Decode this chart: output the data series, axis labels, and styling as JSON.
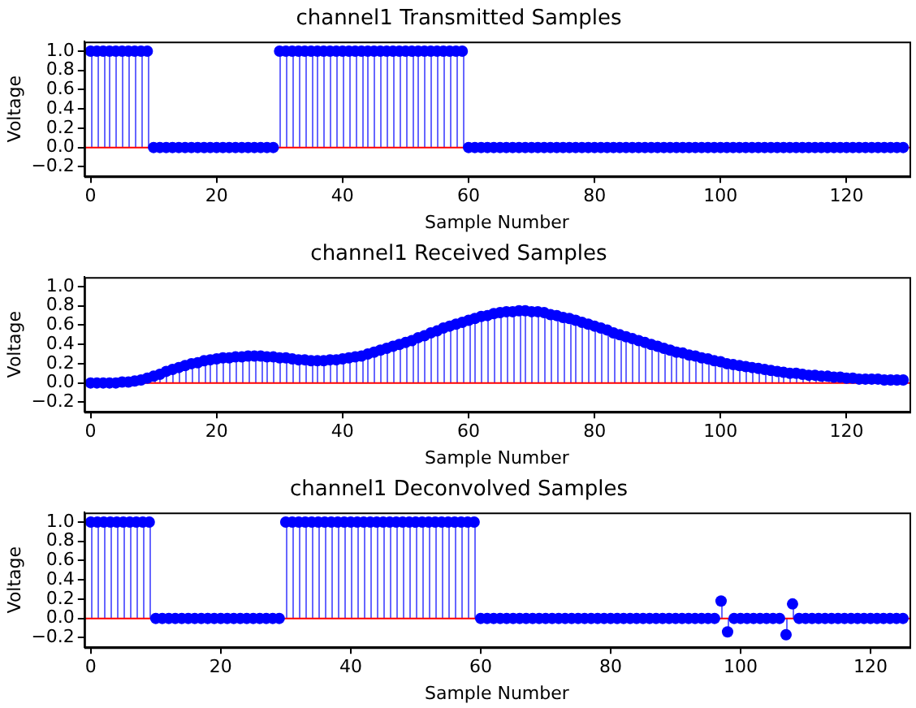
{
  "chart_data": [
    {
      "type": "lollipop",
      "title": "channel1 Transmitted Samples",
      "xlabel": "Sample Number",
      "ylabel": "Voltage",
      "marker": "circle",
      "legend": false,
      "xlim": [
        -1,
        130
      ],
      "xticks": [
        0,
        20,
        40,
        60,
        80,
        100,
        120
      ],
      "ylim": [
        -0.3,
        1.1
      ],
      "yticks": [
        {
          "value": -0.2,
          "label": "−0.2"
        },
        {
          "value": 0,
          "label": "0.0"
        },
        {
          "value": 0.2,
          "label": "0.2"
        },
        {
          "value": 0.4,
          "label": "0.4"
        },
        {
          "value": 0.6,
          "label": "0.6"
        },
        {
          "value": 0.8,
          "label": "0.8"
        },
        {
          "value": 1,
          "label": "1.0"
        }
      ],
      "ref_lines": [
        {
          "axis": "y",
          "value": 0,
          "color": "#ff0000"
        }
      ],
      "series": [
        {
          "color": "#0000ff",
          "x": [
            0,
            1,
            2,
            3,
            4,
            5,
            6,
            7,
            8,
            9,
            10,
            11,
            12,
            13,
            14,
            15,
            16,
            17,
            18,
            19,
            20,
            21,
            22,
            23,
            24,
            25,
            26,
            27,
            28,
            29,
            30,
            31,
            32,
            33,
            34,
            35,
            36,
            37,
            38,
            39,
            40,
            41,
            42,
            43,
            44,
            45,
            46,
            47,
            48,
            49,
            50,
            51,
            52,
            53,
            54,
            55,
            56,
            57,
            58,
            59,
            60,
            61,
            62,
            63,
            64,
            65,
            66,
            67,
            68,
            69,
            70,
            71,
            72,
            73,
            74,
            75,
            76,
            77,
            78,
            79,
            80,
            81,
            82,
            83,
            84,
            85,
            86,
            87,
            88,
            89,
            90,
            91,
            92,
            93,
            94,
            95,
            96,
            97,
            98,
            99,
            100,
            101,
            102,
            103,
            104,
            105,
            106,
            107,
            108,
            109,
            110,
            111,
            112,
            113,
            114,
            115,
            116,
            117,
            118,
            119,
            120,
            121,
            122,
            123,
            124,
            125,
            126,
            127,
            128,
            129
          ],
          "values": [
            1,
            1,
            1,
            1,
            1,
            1,
            1,
            1,
            1,
            1,
            0,
            0,
            0,
            0,
            0,
            0,
            0,
            0,
            0,
            0,
            0,
            0,
            0,
            0,
            0,
            0,
            0,
            0,
            0,
            0,
            1,
            1,
            1,
            1,
            1,
            1,
            1,
            1,
            1,
            1,
            1,
            1,
            1,
            1,
            1,
            1,
            1,
            1,
            1,
            1,
            1,
            1,
            1,
            1,
            1,
            1,
            1,
            1,
            1,
            1,
            0,
            0,
            0,
            0,
            0,
            0,
            0,
            0,
            0,
            0,
            0,
            0,
            0,
            0,
            0,
            0,
            0,
            0,
            0,
            0,
            0,
            0,
            0,
            0,
            0,
            0,
            0,
            0,
            0,
            0,
            0,
            0,
            0,
            0,
            0,
            0,
            0,
            0,
            0,
            0,
            0,
            0,
            0,
            0,
            0,
            0,
            0,
            0,
            0,
            0,
            0,
            0,
            0,
            0,
            0,
            0,
            0,
            0,
            0,
            0,
            0,
            0,
            0,
            0,
            0,
            0,
            0,
            0,
            0,
            0
          ]
        }
      ]
    },
    {
      "type": "lollipop",
      "title": "channel1 Received Samples",
      "xlabel": "Sample Number",
      "ylabel": "Voltage",
      "marker": "circle",
      "legend": false,
      "xlim": [
        -1,
        130
      ],
      "xticks": [
        0,
        20,
        40,
        60,
        80,
        100,
        120
      ],
      "ylim": [
        -0.3,
        1.1
      ],
      "yticks": [
        {
          "value": -0.2,
          "label": "−0.2"
        },
        {
          "value": 0,
          "label": "0.0"
        },
        {
          "value": 0.2,
          "label": "0.2"
        },
        {
          "value": 0.4,
          "label": "0.4"
        },
        {
          "value": 0.6,
          "label": "0.6"
        },
        {
          "value": 0.8,
          "label": "0.8"
        },
        {
          "value": 1,
          "label": "1.0"
        }
      ],
      "ref_lines": [
        {
          "axis": "y",
          "value": 0,
          "color": "#ff0000"
        }
      ],
      "series": [
        {
          "color": "#0000ff",
          "x": [
            0,
            1,
            2,
            3,
            4,
            5,
            6,
            7,
            8,
            9,
            10,
            11,
            12,
            13,
            14,
            15,
            16,
            17,
            18,
            19,
            20,
            21,
            22,
            23,
            24,
            25,
            26,
            27,
            28,
            29,
            30,
            31,
            32,
            33,
            34,
            35,
            36,
            37,
            38,
            39,
            40,
            41,
            42,
            43,
            44,
            45,
            46,
            47,
            48,
            49,
            50,
            51,
            52,
            53,
            54,
            55,
            56,
            57,
            58,
            59,
            60,
            61,
            62,
            63,
            64,
            65,
            66,
            67,
            68,
            69,
            70,
            71,
            72,
            73,
            74,
            75,
            76,
            77,
            78,
            79,
            80,
            81,
            82,
            83,
            84,
            85,
            86,
            87,
            88,
            89,
            90,
            91,
            92,
            93,
            94,
            95,
            96,
            97,
            98,
            99,
            100,
            101,
            102,
            103,
            104,
            105,
            106,
            107,
            108,
            109,
            110,
            111,
            112,
            113,
            114,
            115,
            116,
            117,
            118,
            119,
            120,
            121,
            122,
            123,
            124,
            125,
            126,
            127,
            128,
            129
          ],
          "values": [
            0,
            0,
            0,
            0,
            0,
            0.01,
            0.01,
            0.02,
            0.03,
            0.05,
            0.07,
            0.09,
            0.12,
            0.14,
            0.16,
            0.18,
            0.2,
            0.21,
            0.23,
            0.24,
            0.25,
            0.26,
            0.26,
            0.27,
            0.27,
            0.28,
            0.28,
            0.28,
            0.27,
            0.27,
            0.26,
            0.26,
            0.25,
            0.24,
            0.24,
            0.23,
            0.23,
            0.23,
            0.24,
            0.24,
            0.25,
            0.26,
            0.27,
            0.28,
            0.3,
            0.32,
            0.34,
            0.36,
            0.38,
            0.4,
            0.42,
            0.44,
            0.47,
            0.49,
            0.52,
            0.54,
            0.57,
            0.59,
            0.61,
            0.63,
            0.65,
            0.67,
            0.69,
            0.7,
            0.72,
            0.73,
            0.74,
            0.74,
            0.75,
            0.75,
            0.74,
            0.74,
            0.73,
            0.71,
            0.7,
            0.68,
            0.67,
            0.65,
            0.63,
            0.61,
            0.59,
            0.57,
            0.55,
            0.52,
            0.5,
            0.48,
            0.46,
            0.44,
            0.42,
            0.4,
            0.38,
            0.36,
            0.34,
            0.32,
            0.31,
            0.29,
            0.28,
            0.26,
            0.25,
            0.23,
            0.22,
            0.2,
            0.19,
            0.18,
            0.17,
            0.16,
            0.15,
            0.14,
            0.13,
            0.12,
            0.11,
            0.1,
            0.1,
            0.09,
            0.08,
            0.08,
            0.07,
            0.07,
            0.06,
            0.06,
            0.05,
            0.05,
            0.04,
            0.04,
            0.04,
            0.04,
            0.03,
            0.03,
            0.03,
            0.03
          ]
        }
      ]
    },
    {
      "type": "lollipop",
      "title": "channel1 Deconvolved Samples",
      "xlabel": "Sample Number",
      "ylabel": "Voltage",
      "marker": "circle",
      "legend": false,
      "xlim": [
        -1,
        126
      ],
      "xticks": [
        0,
        20,
        40,
        60,
        80,
        100,
        120
      ],
      "ylim": [
        -0.3,
        1.1
      ],
      "yticks": [
        {
          "value": -0.2,
          "label": "−0.2"
        },
        {
          "value": 0,
          "label": "0.0"
        },
        {
          "value": 0.2,
          "label": "0.2"
        },
        {
          "value": 0.4,
          "label": "0.4"
        },
        {
          "value": 0.6,
          "label": "0.6"
        },
        {
          "value": 0.8,
          "label": "0.8"
        },
        {
          "value": 1,
          "label": "1.0"
        }
      ],
      "ref_lines": [
        {
          "axis": "y",
          "value": 0,
          "color": "#ff0000"
        }
      ],
      "series": [
        {
          "color": "#0000ff",
          "x": [
            0,
            1,
            2,
            3,
            4,
            5,
            6,
            7,
            8,
            9,
            10,
            11,
            12,
            13,
            14,
            15,
            16,
            17,
            18,
            19,
            20,
            21,
            22,
            23,
            24,
            25,
            26,
            27,
            28,
            29,
            30,
            31,
            32,
            33,
            34,
            35,
            36,
            37,
            38,
            39,
            40,
            41,
            42,
            43,
            44,
            45,
            46,
            47,
            48,
            49,
            50,
            51,
            52,
            53,
            54,
            55,
            56,
            57,
            58,
            59,
            60,
            61,
            62,
            63,
            64,
            65,
            66,
            67,
            68,
            69,
            70,
            71,
            72,
            73,
            74,
            75,
            76,
            77,
            78,
            79,
            80,
            81,
            82,
            83,
            84,
            85,
            86,
            87,
            88,
            89,
            90,
            91,
            92,
            93,
            94,
            95,
            96,
            97,
            98,
            99,
            100,
            101,
            102,
            103,
            104,
            105,
            106,
            107,
            108,
            109,
            110,
            111,
            112,
            113,
            114,
            115,
            116,
            117,
            118,
            119,
            120,
            121,
            122,
            123,
            124,
            125
          ],
          "values": [
            1,
            1,
            1,
            1,
            1,
            1,
            1,
            1,
            1,
            1,
            0,
            0,
            0,
            0,
            0,
            0,
            0,
            0,
            0,
            0,
            0,
            0,
            0,
            0,
            0,
            0,
            0,
            0,
            0,
            0,
            1,
            1,
            1,
            1,
            1,
            1,
            1,
            1,
            1,
            1,
            1,
            1,
            1,
            1,
            1,
            1,
            1,
            1,
            1,
            1,
            1,
            1,
            1,
            1,
            1,
            1,
            1,
            1,
            1,
            1,
            0,
            0,
            0,
            0,
            0,
            0,
            0,
            0,
            0,
            0,
            0,
            0,
            0,
            0,
            0,
            0,
            0,
            0,
            0,
            0,
            0,
            0,
            0,
            0,
            0,
            0,
            0,
            0,
            0,
            0,
            0,
            0,
            0,
            0,
            0,
            0,
            0,
            0.18,
            -0.14,
            0,
            0,
            0,
            0,
            0,
            0,
            0,
            0,
            -0.17,
            0.15,
            0,
            0,
            0,
            0,
            0,
            0,
            0,
            0,
            0,
            0,
            0,
            0,
            0,
            0,
            0,
            0,
            0
          ]
        }
      ]
    }
  ]
}
